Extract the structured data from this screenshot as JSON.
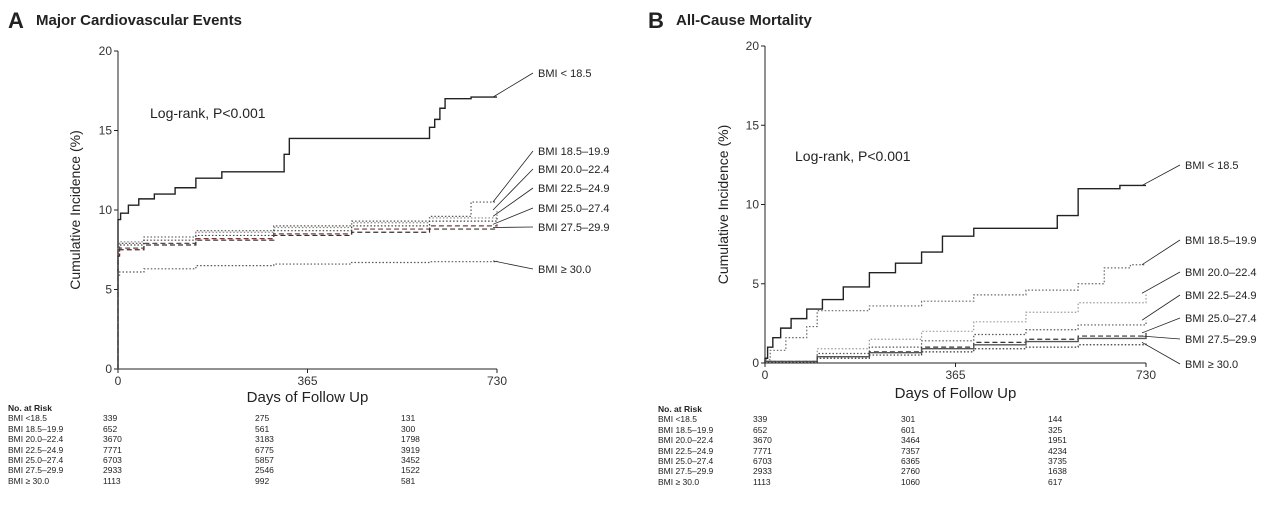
{
  "chart_data": [
    {
      "panel": "A",
      "title": "Major Cardiovascular Events",
      "type": "line",
      "xlabel": "Days of Follow Up",
      "ylabel": "Cumulative Incidence (%)",
      "xlim": [
        0,
        730
      ],
      "ylim": [
        0,
        20
      ],
      "xticks": [
        "0",
        "365",
        "730"
      ],
      "yticks": [
        "0",
        "5",
        "10",
        "15",
        "20"
      ],
      "annotation": "Log-rank, P<0.001",
      "series": [
        {
          "name": "BMI < 18.5",
          "style": "solid",
          "color": "#222222",
          "x": [
            0,
            5,
            20,
            40,
            70,
            110,
            150,
            200,
            260,
            320,
            330,
            410,
            430,
            455,
            600,
            610,
            620,
            630,
            680,
            730
          ],
          "y": [
            9.4,
            9.8,
            10.3,
            10.7,
            11.0,
            11.4,
            12.0,
            12.4,
            12.4,
            13.5,
            14.5,
            14.5,
            14.5,
            14.5,
            15.2,
            15.7,
            16.4,
            17.0,
            17.1,
            17.1
          ]
        },
        {
          "name": "BMI 18.5–19.9",
          "style": "dotted",
          "color": "#555555",
          "x": [
            0,
            3,
            50,
            150,
            300,
            450,
            600,
            680,
            730
          ],
          "y": [
            7.4,
            7.9,
            8.3,
            8.7,
            9.0,
            9.3,
            9.6,
            10.5,
            10.5
          ]
        },
        {
          "name": "BMI 20.0–22.4",
          "style": "dotted",
          "color": "#888888",
          "x": [
            0,
            3,
            50,
            150,
            300,
            450,
            600,
            730
          ],
          "y": [
            7.6,
            8.0,
            8.3,
            8.6,
            8.9,
            9.2,
            9.5,
            10.0
          ]
        },
        {
          "name": "BMI 22.5–24.9",
          "style": "dotted",
          "color": "#444444",
          "x": [
            0,
            3,
            50,
            150,
            300,
            450,
            600,
            730
          ],
          "y": [
            7.5,
            7.8,
            8.1,
            8.4,
            8.7,
            9.0,
            9.3,
            9.6
          ]
        },
        {
          "name": "BMI 25.0–27.4",
          "style": "dashed",
          "color": "#7a3b3b",
          "x": [
            0,
            3,
            50,
            150,
            300,
            450,
            600,
            730
          ],
          "y": [
            7.2,
            7.6,
            7.9,
            8.2,
            8.5,
            8.8,
            9.0,
            9.1
          ]
        },
        {
          "name": "BMI 27.5–29.9",
          "style": "dashed",
          "color": "#333333",
          "x": [
            0,
            3,
            50,
            150,
            300,
            450,
            600,
            730
          ],
          "y": [
            7.1,
            7.5,
            7.8,
            8.1,
            8.4,
            8.6,
            8.8,
            8.9
          ]
        },
        {
          "name": "BMI ≥ 30.0",
          "style": "dotted",
          "color": "#555555",
          "x": [
            0,
            3,
            50,
            150,
            300,
            450,
            600,
            730
          ],
          "y": [
            5.9,
            6.1,
            6.3,
            6.5,
            6.6,
            6.7,
            6.75,
            6.8
          ]
        }
      ],
      "risk_table": {
        "header": "No. at Risk",
        "rows": [
          {
            "label": "BMI <18.5",
            "values": [
              "339",
              "275",
              "131"
            ]
          },
          {
            "label": "BMI 18.5–19.9",
            "values": [
              "652",
              "561",
              "300"
            ]
          },
          {
            "label": "BMI 20.0–22.4",
            "values": [
              "3670",
              "3183",
              "1798"
            ]
          },
          {
            "label": "BMI 22.5–24.9",
            "values": [
              "7771",
              "6775",
              "3919"
            ]
          },
          {
            "label": "BMI 25.0–27.4",
            "values": [
              "6703",
              "5857",
              "3452"
            ]
          },
          {
            "label": "BMI 27.5–29.9",
            "values": [
              "2933",
              "2546",
              "1522"
            ]
          },
          {
            "label": "BMI  ≥ 30.0",
            "values": [
              "1113",
              "992",
              "581"
            ]
          }
        ]
      }
    },
    {
      "panel": "B",
      "title": "All-Cause Mortality",
      "type": "line",
      "xlabel": "Days of Follow Up",
      "ylabel": "Cumulative Incidence (%)",
      "xlim": [
        0,
        730
      ],
      "ylim": [
        0,
        20
      ],
      "xticks": [
        "0",
        "365",
        "730"
      ],
      "yticks": [
        "0",
        "5",
        "10",
        "15",
        "20"
      ],
      "annotation": "Log-rank, P<0.001",
      "series": [
        {
          "name": "BMI < 18.5",
          "style": "solid",
          "color": "#222222",
          "x": [
            0,
            5,
            15,
            30,
            50,
            80,
            110,
            150,
            200,
            250,
            300,
            340,
            400,
            520,
            560,
            600,
            680,
            730
          ],
          "y": [
            0.3,
            1.0,
            1.6,
            2.2,
            2.8,
            3.4,
            4.0,
            4.8,
            5.7,
            6.3,
            7.0,
            8.0,
            8.5,
            8.5,
            9.3,
            11.0,
            11.2,
            11.2
          ]
        },
        {
          "name": "BMI 18.5–19.9",
          "style": "dotted",
          "color": "#666666",
          "x": [
            0,
            10,
            40,
            80,
            100,
            200,
            300,
            400,
            500,
            600,
            650,
            700,
            730
          ],
          "y": [
            0.2,
            0.8,
            1.6,
            2.3,
            3.3,
            3.6,
            3.9,
            4.3,
            4.6,
            5.0,
            6.0,
            6.2,
            6.2
          ]
        },
        {
          "name": "BMI 20.0–22.4",
          "style": "dotted",
          "color": "#999999",
          "x": [
            0,
            100,
            200,
            300,
            400,
            500,
            600,
            730
          ],
          "y": [
            0.1,
            0.9,
            1.5,
            2.0,
            2.6,
            3.2,
            3.8,
            4.4
          ]
        },
        {
          "name": "BMI 22.5–24.9",
          "style": "dotted",
          "color": "#555555",
          "x": [
            0,
            100,
            200,
            300,
            400,
            500,
            600,
            730
          ],
          "y": [
            0.1,
            0.6,
            1.0,
            1.4,
            1.8,
            2.1,
            2.4,
            2.7
          ]
        },
        {
          "name": "BMI 25.0–27.4",
          "style": "dashed",
          "color": "#333333",
          "x": [
            0,
            100,
            200,
            300,
            400,
            500,
            600,
            730
          ],
          "y": [
            0.1,
            0.4,
            0.7,
            1.0,
            1.3,
            1.5,
            1.7,
            1.9
          ]
        },
        {
          "name": "BMI 27.5–29.9",
          "style": "solid",
          "color": "#555555",
          "x": [
            0,
            100,
            200,
            300,
            400,
            500,
            600,
            730
          ],
          "y": [
            0.1,
            0.4,
            0.65,
            0.9,
            1.15,
            1.35,
            1.55,
            1.7
          ]
        },
        {
          "name": "BMI ≥ 30.0",
          "style": "dotted",
          "color": "#333333",
          "x": [
            0,
            100,
            200,
            300,
            400,
            500,
            600,
            730
          ],
          "y": [
            0.05,
            0.3,
            0.5,
            0.7,
            0.9,
            1.0,
            1.15,
            1.3
          ]
        }
      ],
      "risk_table": {
        "header": "No. at Risk",
        "rows": [
          {
            "label": "BMI <18.5",
            "values": [
              "339",
              "301",
              "144"
            ]
          },
          {
            "label": "BMI 18.5–19.9",
            "values": [
              "652",
              "601",
              "325"
            ]
          },
          {
            "label": "BMI 20.0–22.4",
            "values": [
              "3670",
              "3464",
              "1951"
            ]
          },
          {
            "label": "BMI 22.5–24.9",
            "values": [
              "7771",
              "7357",
              "4234"
            ]
          },
          {
            "label": "BMI 25.0–27.4",
            "values": [
              "6703",
              "6365",
              "3735"
            ]
          },
          {
            "label": "BMI 27.5–29.9",
            "values": [
              "2933",
              "2760",
              "1638"
            ]
          },
          {
            "label": "BMI  ≥ 30.0",
            "values": [
              "1113",
              "1060",
              "617"
            ]
          }
        ]
      }
    }
  ]
}
